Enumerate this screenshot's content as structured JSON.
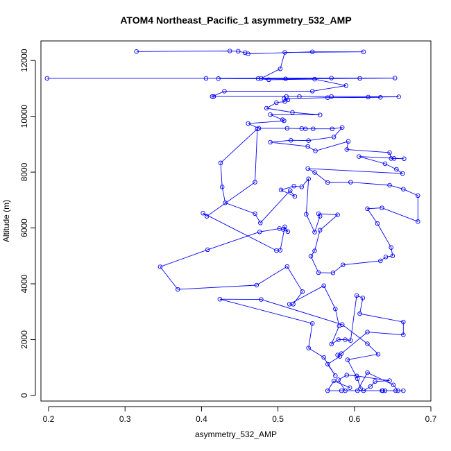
{
  "chart_data": {
    "type": "line",
    "title": "ATOM4 Northeast_Pacific_1 asymmetry_532_AMP",
    "xlabel": "asymmetry_532_AMP",
    "ylabel": "Altitude (m)",
    "xlim": [
      0.19,
      0.7
    ],
    "ylim": [
      -200,
      12700
    ],
    "x_ticks": [
      0.2,
      0.3,
      0.4,
      0.5,
      0.6,
      0.7
    ],
    "x_tick_labels": [
      "0.2",
      "0.3",
      "0.4",
      "0.5",
      "0.6",
      "0.7"
    ],
    "y_ticks": [
      0,
      2000,
      4000,
      6000,
      8000,
      10000,
      12000
    ],
    "y_tick_labels": [
      "0",
      "2000",
      "4000",
      "6000",
      "8000",
      "10000",
      "12000"
    ],
    "grid": false,
    "legend": "none",
    "colors": {
      "series": "#0000ff",
      "axes": "#000000"
    },
    "series": [
      {
        "marker": "open-circle",
        "points": [
          [
            0.315,
            12320
          ],
          [
            0.437,
            12340
          ],
          [
            0.448,
            12330
          ],
          [
            0.457,
            12280
          ],
          [
            0.461,
            12240
          ],
          [
            0.545,
            12310
          ],
          [
            0.612,
            12310
          ],
          [
            0.509,
            12290
          ],
          [
            0.503,
            11700
          ],
          [
            0.478,
            11360
          ],
          [
            0.198,
            11360
          ],
          [
            0.406,
            11360
          ],
          [
            0.57,
            11370
          ],
          [
            0.653,
            11370
          ],
          [
            0.607,
            11360
          ],
          [
            0.51,
            11340
          ],
          [
            0.422,
            11350
          ],
          [
            0.474,
            11350
          ],
          [
            0.488,
            11310
          ],
          [
            0.548,
            11330
          ],
          [
            0.589,
            11100
          ],
          [
            0.545,
            10900
          ],
          [
            0.43,
            10900
          ],
          [
            0.414,
            10710
          ],
          [
            0.416,
            10710
          ],
          [
            0.511,
            10710
          ],
          [
            0.528,
            10710
          ],
          [
            0.57,
            10710
          ],
          [
            0.658,
            10700
          ],
          [
            0.618,
            10690
          ],
          [
            0.634,
            10680
          ],
          [
            0.565,
            10670
          ],
          [
            0.508,
            10630
          ],
          [
            0.513,
            10590
          ],
          [
            0.509,
            10530
          ],
          [
            0.498,
            10490
          ],
          [
            0.485,
            10290
          ],
          [
            0.519,
            10140
          ],
          [
            0.555,
            10050
          ],
          [
            0.49,
            10060
          ],
          [
            0.506,
            9880
          ],
          [
            0.508,
            9840
          ],
          [
            0.461,
            9740
          ],
          [
            0.475,
            9570
          ],
          [
            0.512,
            9570
          ],
          [
            0.531,
            9560
          ],
          [
            0.536,
            9550
          ],
          [
            0.546,
            9550
          ],
          [
            0.571,
            9550
          ],
          [
            0.584,
            9600
          ],
          [
            0.573,
            9260
          ],
          [
            0.54,
            9130
          ],
          [
            0.517,
            9140
          ],
          [
            0.49,
            9070
          ],
          [
            0.539,
            8920
          ],
          [
            0.549,
            8760
          ],
          [
            0.592,
            9100
          ],
          [
            0.59,
            8810
          ],
          [
            0.646,
            8700
          ],
          [
            0.648,
            8490
          ],
          [
            0.652,
            8490
          ],
          [
            0.665,
            8480
          ],
          [
            0.606,
            8560
          ],
          [
            0.64,
            8300
          ],
          [
            0.655,
            8100
          ],
          [
            0.663,
            7950
          ],
          [
            0.539,
            8130
          ],
          [
            0.548,
            7990
          ],
          [
            0.565,
            7630
          ],
          [
            0.595,
            7640
          ],
          [
            0.646,
            7530
          ],
          [
            0.664,
            7390
          ],
          [
            0.683,
            7160
          ],
          [
            0.683,
            6230
          ],
          [
            0.636,
            6720
          ],
          [
            0.617,
            6690
          ],
          [
            0.63,
            6160
          ],
          [
            0.648,
            5300
          ],
          [
            0.65,
            5000
          ],
          [
            0.641,
            4960
          ],
          [
            0.634,
            4820
          ],
          [
            0.585,
            4680
          ],
          [
            0.572,
            4390
          ],
          [
            0.553,
            4400
          ],
          [
            0.543,
            4990
          ],
          [
            0.548,
            5180
          ],
          [
            0.555,
            5920
          ],
          [
            0.578,
            6470
          ],
          [
            0.553,
            6510
          ],
          [
            0.555,
            6420
          ],
          [
            0.548,
            5850
          ],
          [
            0.537,
            6490
          ],
          [
            0.54,
            7760
          ],
          [
            0.531,
            7470
          ],
          [
            0.521,
            7500
          ],
          [
            0.504,
            7360
          ],
          [
            0.522,
            7130
          ],
          [
            0.516,
            7340
          ],
          [
            0.477,
            6180
          ],
          [
            0.47,
            6510
          ],
          [
            0.431,
            6900
          ],
          [
            0.427,
            7470
          ],
          [
            0.425,
            8330
          ],
          [
            0.473,
            9550
          ],
          [
            0.47,
            7640
          ],
          [
            0.407,
            6420
          ],
          [
            0.402,
            6530
          ],
          [
            0.498,
            5190
          ],
          [
            0.503,
            5200
          ],
          [
            0.509,
            6040
          ],
          [
            0.513,
            5870
          ],
          [
            0.507,
            5950
          ],
          [
            0.502,
            5980
          ],
          [
            0.476,
            5860
          ],
          [
            0.408,
            5220
          ],
          [
            0.346,
            4610
          ],
          [
            0.369,
            3800
          ],
          [
            0.472,
            3950
          ],
          [
            0.512,
            4620
          ],
          [
            0.532,
            3720
          ],
          [
            0.52,
            3270
          ],
          [
            0.515,
            3270
          ],
          [
            0.56,
            3930
          ],
          [
            0.575,
            3100
          ],
          [
            0.58,
            2490
          ],
          [
            0.57,
            1840
          ],
          [
            0.579,
            2000
          ],
          [
            0.588,
            2000
          ],
          [
            0.595,
            1970
          ],
          [
            0.603,
            3580
          ],
          [
            0.611,
            3490
          ],
          [
            0.607,
            2930
          ],
          [
            0.664,
            2630
          ],
          [
            0.664,
            2170
          ],
          [
            0.617,
            2270
          ],
          [
            0.583,
            1500
          ],
          [
            0.578,
            1450
          ],
          [
            0.581,
            1400
          ],
          [
            0.565,
            1120
          ],
          [
            0.575,
            710
          ],
          [
            0.56,
            1360
          ],
          [
            0.54,
            1700
          ],
          [
            0.545,
            2580
          ],
          [
            0.424,
            3450
          ],
          [
            0.478,
            3440
          ],
          [
            0.584,
            2540
          ],
          [
            0.617,
            1850
          ],
          [
            0.631,
            1480
          ],
          [
            0.591,
            1280
          ],
          [
            0.604,
            600
          ],
          [
            0.608,
            250
          ],
          [
            0.612,
            170
          ],
          [
            0.621,
            320
          ],
          [
            0.627,
            500
          ],
          [
            0.646,
            530
          ],
          [
            0.603,
            700
          ],
          [
            0.59,
            730
          ],
          [
            0.579,
            560
          ],
          [
            0.588,
            170
          ],
          [
            0.583,
            170
          ],
          [
            0.604,
            170
          ],
          [
            0.617,
            820
          ],
          [
            0.651,
            380
          ],
          [
            0.657,
            170
          ],
          [
            0.664,
            170
          ],
          [
            0.654,
            170
          ],
          [
            0.64,
            170
          ],
          [
            0.637,
            170
          ],
          [
            0.636,
            170
          ],
          [
            0.565,
            170
          ],
          [
            0.573,
            520
          ],
          [
            0.594,
            280
          ]
        ]
      }
    ]
  }
}
